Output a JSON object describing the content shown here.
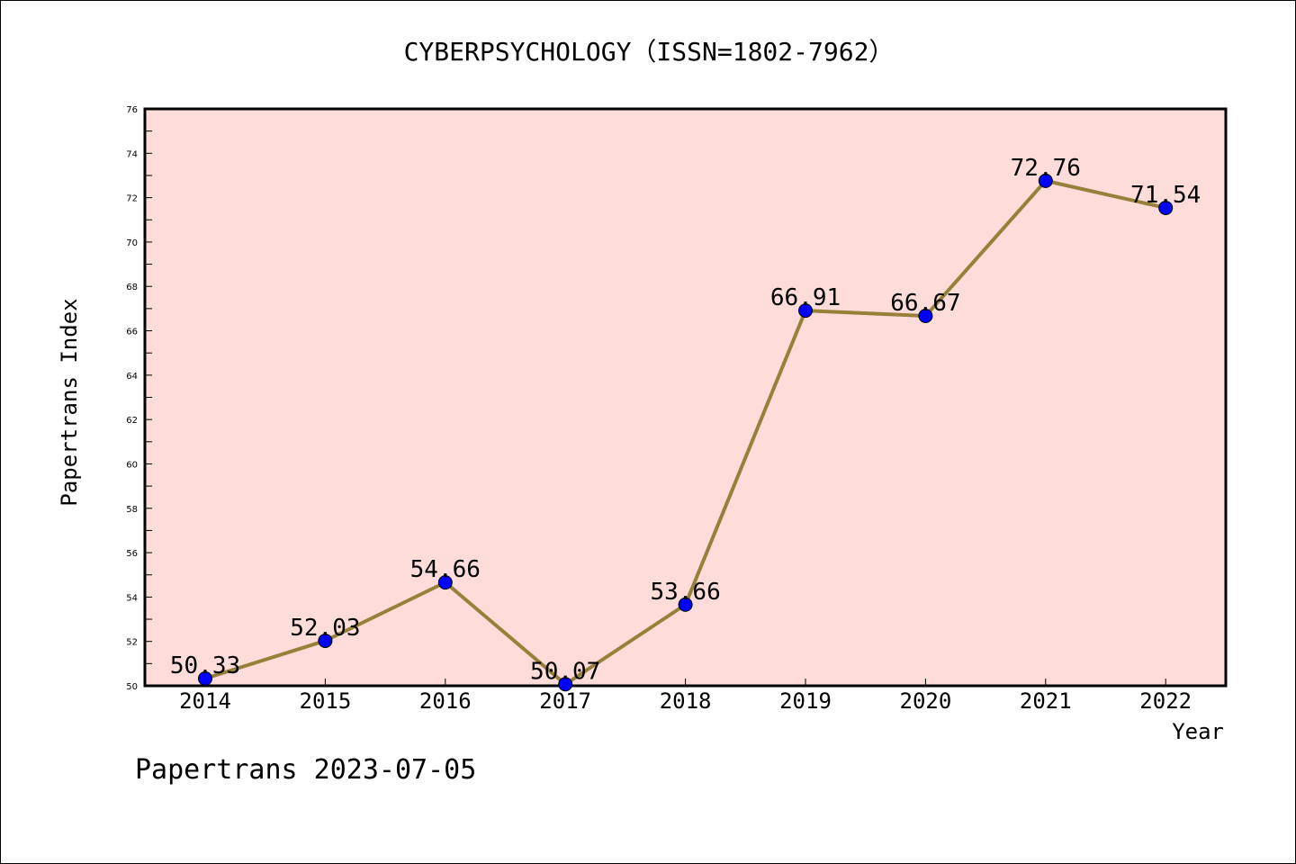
{
  "chart_data": {
    "type": "line",
    "title": "CYBERPSYCHOLOGY（ISSN=1802-7962）",
    "xlabel": "Year",
    "ylabel": "Papertrans Index",
    "categories": [
      "2014",
      "2015",
      "2016",
      "2017",
      "2018",
      "2019",
      "2020",
      "2021",
      "2022"
    ],
    "series": [
      {
        "values": [
          50.33,
          52.03,
          54.66,
          50.07,
          53.66,
          66.91,
          66.67,
          72.76,
          71.54
        ],
        "labels": [
          "50.33",
          "52.03",
          "54.66",
          "50.07",
          "53.66",
          "66.91",
          "66.67",
          "72.76",
          "71.54"
        ]
      }
    ],
    "ylim": [
      50,
      76
    ],
    "yticks": [
      "50",
      "52",
      "54",
      "56",
      "58",
      "60",
      "62",
      "64",
      "66",
      "68",
      "70",
      "72",
      "74",
      "76"
    ],
    "grid": false,
    "legend": "none",
    "colors": {
      "plot_background": "#fddcda",
      "line": "#96803a",
      "marker": "#0000ff"
    }
  },
  "footer": "Papertrans 2023-07-05"
}
